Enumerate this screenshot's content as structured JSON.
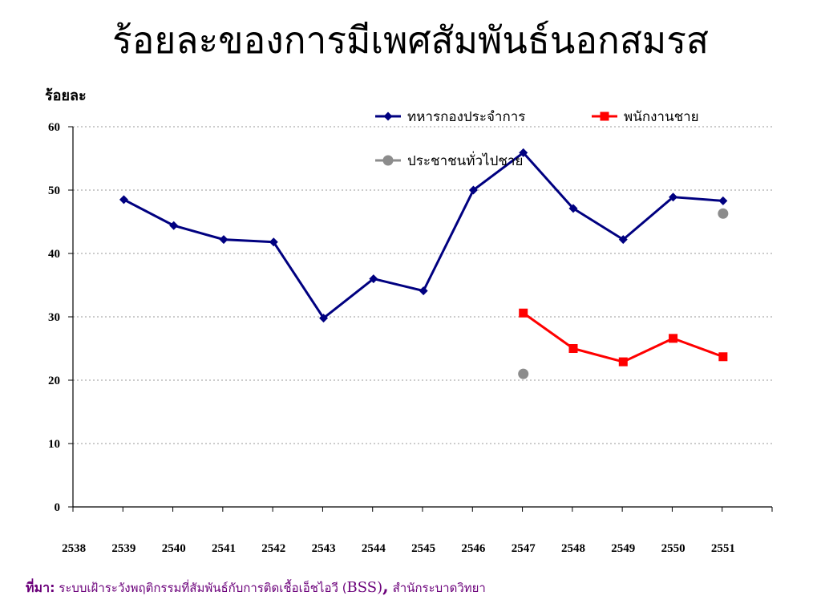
{
  "title": "ร้อยละของการมีเพศสัมพันธ์นอกสมรส",
  "source": {
    "label": "ที่มา:",
    "text_before": "ระบบเฝ้าระวังพฤติกรรมที่สัมพันธ์กับการติดเชื้อเอ็ชไอวี",
    "paren_open": "(",
    "bss": "BSS)",
    "comma": ",",
    "text_after": "สำนักระบาดวิทยา"
  },
  "colors": {
    "series1": "#000080",
    "series2": "#ff0000",
    "series3": "#8c8c8c",
    "grid": "#999999",
    "source_text": "#6b007a"
  },
  "chart_data": {
    "type": "line",
    "ylabel": "ร้อยละ",
    "xlabel": "",
    "ylim": [
      0,
      60
    ],
    "yticks": [
      0,
      10,
      20,
      30,
      40,
      50,
      60
    ],
    "grid": true,
    "legend_position": "top-right",
    "categories": [
      "2538",
      "2539",
      "2540",
      "2541",
      "2542",
      "2543",
      "2544",
      "2545",
      "2546",
      "2547",
      "2548",
      "2549",
      "2550",
      "2551"
    ],
    "series": [
      {
        "name": "ทหารกองประจำการ",
        "marker": "diamond",
        "values": [
          null,
          48.5,
          44.4,
          42.2,
          41.8,
          29.8,
          36.0,
          34.1,
          50.0,
          55.9,
          47.1,
          42.2,
          48.9,
          48.3
        ]
      },
      {
        "name": "พนักงานชาย",
        "marker": "square",
        "values": [
          null,
          null,
          null,
          null,
          null,
          null,
          null,
          null,
          null,
          30.6,
          25.0,
          22.9,
          26.6,
          23.7
        ]
      },
      {
        "name": "ประชาชนทั่วไปชาย",
        "marker": "circle",
        "values": [
          null,
          null,
          null,
          null,
          null,
          null,
          null,
          null,
          null,
          21.0,
          null,
          null,
          null,
          46.3
        ]
      }
    ]
  }
}
